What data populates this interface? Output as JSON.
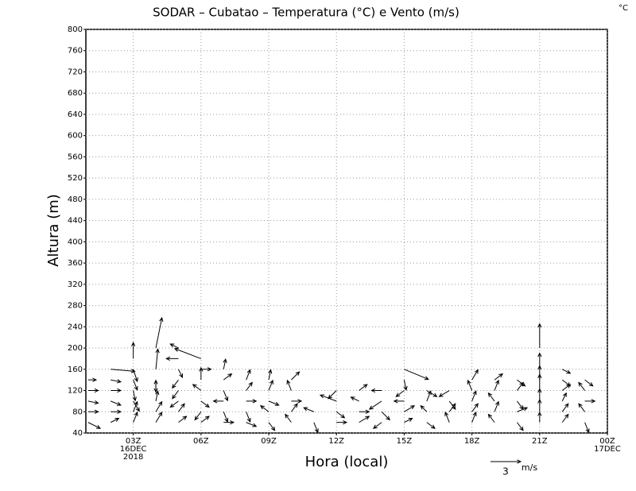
{
  "chart_data": {
    "type": "quiver",
    "title": "SODAR – Cubatao – Temperatura (°C) e Vento (m/s)",
    "corner_label": "°C",
    "xlabel": "Hora (local)",
    "ylabel": "Altura (m)",
    "xlim": [
      0.9,
      24
    ],
    "ylim": [
      40,
      800
    ],
    "xticks": [
      {
        "value": 3,
        "label": "03Z"
      },
      {
        "value": 6,
        "label": "06Z"
      },
      {
        "value": 9,
        "label": "09Z"
      },
      {
        "value": 12,
        "label": "12Z"
      },
      {
        "value": 15,
        "label": "15Z"
      },
      {
        "value": 18,
        "label": "18Z"
      },
      {
        "value": 21,
        "label": "21Z"
      },
      {
        "value": 24,
        "label": "00Z"
      }
    ],
    "date_labels": [
      {
        "value": 3,
        "label": "16DEC"
      },
      {
        "value": 3,
        "label": "2018"
      },
      {
        "value": 24,
        "label": "17DEC"
      }
    ],
    "yticks": [
      40,
      80,
      120,
      160,
      200,
      240,
      280,
      320,
      360,
      400,
      440,
      480,
      520,
      560,
      600,
      640,
      680,
      720,
      760,
      800
    ],
    "grid": true,
    "color": "#000000",
    "key_value": 3,
    "key_unit": "m/s",
    "vectors": [
      {
        "x": 1,
        "y": 60,
        "u": 1.2,
        "v": -0.6
      },
      {
        "x": 1,
        "y": 80,
        "u": 1,
        "v": 0
      },
      {
        "x": 1,
        "y": 100,
        "u": 1,
        "v": -0.2
      },
      {
        "x": 1,
        "y": 120,
        "u": 1,
        "v": 0
      },
      {
        "x": 1,
        "y": 140,
        "u": 0.8,
        "v": 0
      },
      {
        "x": 2,
        "y": 60,
        "u": 0.8,
        "v": 0.4
      },
      {
        "x": 2,
        "y": 80,
        "u": 1,
        "v": 0
      },
      {
        "x": 2,
        "y": 100,
        "u": 1,
        "v": -0.4
      },
      {
        "x": 2,
        "y": 120,
        "u": 1,
        "v": 0
      },
      {
        "x": 2,
        "y": 140,
        "u": 1,
        "v": -0.2
      },
      {
        "x": 2,
        "y": 160,
        "u": 2.4,
        "v": -0.2
      },
      {
        "x": 3,
        "y": 60,
        "u": 0.4,
        "v": 1
      },
      {
        "x": 3,
        "y": 80,
        "u": 0.4,
        "v": 1
      },
      {
        "x": 3,
        "y": 100,
        "u": 0.6,
        "v": -1
      },
      {
        "x": 3,
        "y": 120,
        "u": 0.2,
        "v": -1
      },
      {
        "x": 3,
        "y": 140,
        "u": 0.4,
        "v": -1
      },
      {
        "x": 3,
        "y": 160,
        "u": 0.4,
        "v": -1.2
      },
      {
        "x": 3,
        "y": 180,
        "u": 0,
        "v": 1.6
      },
      {
        "x": 4,
        "y": 60,
        "u": 0.6,
        "v": 1
      },
      {
        "x": 4,
        "y": 80,
        "u": 0.6,
        "v": 1
      },
      {
        "x": 4,
        "y": 100,
        "u": 0.2,
        "v": 1
      },
      {
        "x": 4,
        "y": 120,
        "u": 0,
        "v": 1
      },
      {
        "x": 4,
        "y": 140,
        "u": 0,
        "v": -1.2
      },
      {
        "x": 4,
        "y": 160,
        "u": 0.2,
        "v": 2
      },
      {
        "x": 4,
        "y": 200,
        "u": 0.6,
        "v": 3
      },
      {
        "x": 5,
        "y": 60,
        "u": 0.8,
        "v": 0.6
      },
      {
        "x": 5,
        "y": 80,
        "u": 0.6,
        "v": 0.8
      },
      {
        "x": 5,
        "y": 100,
        "u": -0.8,
        "v": -0.6
      },
      {
        "x": 5,
        "y": 120,
        "u": -0.6,
        "v": -0.8
      },
      {
        "x": 5,
        "y": 140,
        "u": -0.6,
        "v": -0.8
      },
      {
        "x": 5,
        "y": 160,
        "u": 0.4,
        "v": -0.8
      },
      {
        "x": 5,
        "y": 180,
        "u": -1.2,
        "v": 0
      },
      {
        "x": 5,
        "y": 200,
        "u": -0.8,
        "v": 0.4
      },
      {
        "x": 6,
        "y": 60,
        "u": 0.8,
        "v": 0.6
      },
      {
        "x": 6,
        "y": 80,
        "u": -0.6,
        "v": -0.8
      },
      {
        "x": 6,
        "y": 100,
        "u": 0.8,
        "v": -0.6
      },
      {
        "x": 6,
        "y": 120,
        "u": -0.8,
        "v": 0.6
      },
      {
        "x": 6,
        "y": 140,
        "u": 0,
        "v": 1.2
      },
      {
        "x": 6,
        "y": 160,
        "u": 1,
        "v": 0
      },
      {
        "x": 6,
        "y": 180,
        "u": -2.6,
        "v": 1
      },
      {
        "x": 7,
        "y": 60,
        "u": 1,
        "v": 0
      },
      {
        "x": 7,
        "y": 80,
        "u": 0.4,
        "v": -1
      },
      {
        "x": 7,
        "y": 100,
        "u": -1,
        "v": 0
      },
      {
        "x": 7,
        "y": 120,
        "u": 0.4,
        "v": -1
      },
      {
        "x": 7,
        "y": 140,
        "u": 0.8,
        "v": 0.6
      },
      {
        "x": 7,
        "y": 160,
        "u": 0.2,
        "v": 1
      },
      {
        "x": 8,
        "y": 60,
        "u": 1,
        "v": -0.4
      },
      {
        "x": 8,
        "y": 80,
        "u": 0.4,
        "v": -1
      },
      {
        "x": 8,
        "y": 100,
        "u": 1,
        "v": 0
      },
      {
        "x": 8,
        "y": 120,
        "u": 0.6,
        "v": 0.8
      },
      {
        "x": 8,
        "y": 140,
        "u": 0.4,
        "v": 1
      },
      {
        "x": 9,
        "y": 60,
        "u": 0.6,
        "v": -0.8
      },
      {
        "x": 9,
        "y": 80,
        "u": -0.8,
        "v": 0.6
      },
      {
        "x": 9,
        "y": 100,
        "u": 1,
        "v": -0.4
      },
      {
        "x": 9,
        "y": 120,
        "u": 0.4,
        "v": 1
      },
      {
        "x": 9,
        "y": 140,
        "u": 0.2,
        "v": 1
      },
      {
        "x": 10,
        "y": 60,
        "u": -0.6,
        "v": 0.8
      },
      {
        "x": 10,
        "y": 80,
        "u": 0.6,
        "v": 0.8
      },
      {
        "x": 10,
        "y": 100,
        "u": 1,
        "v": 0
      },
      {
        "x": 10,
        "y": 120,
        "u": -0.4,
        "v": 1
      },
      {
        "x": 10,
        "y": 140,
        "u": 0.8,
        "v": 0.8
      },
      {
        "x": 11,
        "y": 60,
        "u": 0.4,
        "v": -1
      },
      {
        "x": 11,
        "y": 80,
        "u": -1,
        "v": 0.4
      },
      {
        "x": 12,
        "y": 60,
        "u": 1,
        "v": 0
      },
      {
        "x": 12,
        "y": 80,
        "u": 0.8,
        "v": -0.6
      },
      {
        "x": 12,
        "y": 100,
        "u": -1.6,
        "v": 0.6
      },
      {
        "x": 12,
        "y": 120,
        "u": -0.8,
        "v": -0.8
      },
      {
        "x": 13,
        "y": 60,
        "u": 1,
        "v": 0.6
      },
      {
        "x": 13,
        "y": 80,
        "u": 1,
        "v": 0
      },
      {
        "x": 13,
        "y": 100,
        "u": -0.8,
        "v": 0.4
      },
      {
        "x": 13,
        "y": 120,
        "u": 0.8,
        "v": 0.6
      },
      {
        "x": 14,
        "y": 60,
        "u": -0.8,
        "v": -0.6
      },
      {
        "x": 14,
        "y": 80,
        "u": 0.8,
        "v": -0.8
      },
      {
        "x": 14,
        "y": 100,
        "u": -1.2,
        "v": -0.8
      },
      {
        "x": 14,
        "y": 120,
        "u": -1,
        "v": 0
      },
      {
        "x": 15,
        "y": 60,
        "u": 0.8,
        "v": 0.4
      },
      {
        "x": 15,
        "y": 80,
        "u": 1,
        "v": 0.6
      },
      {
        "x": 15,
        "y": 100,
        "u": -1,
        "v": 0
      },
      {
        "x": 15,
        "y": 120,
        "u": -0.8,
        "v": -0.6
      },
      {
        "x": 15,
        "y": 140,
        "u": 0.2,
        "v": -1
      },
      {
        "x": 15,
        "y": 160,
        "u": 2.4,
        "v": -1
      },
      {
        "x": 16,
        "y": 60,
        "u": 0.8,
        "v": -0.6
      },
      {
        "x": 16,
        "y": 80,
        "u": -0.6,
        "v": 0.6
      },
      {
        "x": 16,
        "y": 100,
        "u": 0.4,
        "v": 1
      },
      {
        "x": 16,
        "y": 120,
        "u": 1,
        "v": -0.6
      },
      {
        "x": 17,
        "y": 60,
        "u": -0.4,
        "v": 1
      },
      {
        "x": 17,
        "y": 80,
        "u": 0.6,
        "v": 0.8
      },
      {
        "x": 17,
        "y": 100,
        "u": 0.6,
        "v": -0.8
      },
      {
        "x": 17,
        "y": 120,
        "u": -1,
        "v": -0.6
      },
      {
        "x": 18,
        "y": 60,
        "u": 0.4,
        "v": 1
      },
      {
        "x": 18,
        "y": 80,
        "u": 0.6,
        "v": 0.8
      },
      {
        "x": 18,
        "y": 100,
        "u": 0.4,
        "v": 1
      },
      {
        "x": 18,
        "y": 120,
        "u": -0.4,
        "v": 1
      },
      {
        "x": 18,
        "y": 140,
        "u": 0.6,
        "v": 1
      },
      {
        "x": 19,
        "y": 60,
        "u": -0.6,
        "v": 0.8
      },
      {
        "x": 19,
        "y": 80,
        "u": 0.4,
        "v": 1
      },
      {
        "x": 19,
        "y": 100,
        "u": -0.6,
        "v": 0.8
      },
      {
        "x": 19,
        "y": 120,
        "u": 0.4,
        "v": 1
      },
      {
        "x": 19,
        "y": 140,
        "u": 0.8,
        "v": 0.6
      },
      {
        "x": 20,
        "y": 60,
        "u": 0.6,
        "v": -0.8
      },
      {
        "x": 20,
        "y": 80,
        "u": 1,
        "v": 0.4
      },
      {
        "x": 20,
        "y": 100,
        "u": 0.6,
        "v": -0.8
      },
      {
        "x": 20,
        "y": 120,
        "u": 0.6,
        "v": 0.8
      },
      {
        "x": 20,
        "y": 140,
        "u": 0.8,
        "v": -0.6
      },
      {
        "x": 21,
        "y": 60,
        "u": 0,
        "v": 1
      },
      {
        "x": 21,
        "y": 80,
        "u": 0,
        "v": 1.2
      },
      {
        "x": 21,
        "y": 100,
        "u": 0,
        "v": 1.2
      },
      {
        "x": 21,
        "y": 120,
        "u": 0,
        "v": 1.6
      },
      {
        "x": 21,
        "y": 140,
        "u": 0,
        "v": 1.4
      },
      {
        "x": 21,
        "y": 160,
        "u": 0,
        "v": 1.6
      },
      {
        "x": 21,
        "y": 200,
        "u": 0,
        "v": 2.4
      },
      {
        "x": 22,
        "y": 60,
        "u": 0.6,
        "v": 0.8
      },
      {
        "x": 22,
        "y": 80,
        "u": 0.6,
        "v": 0.8
      },
      {
        "x": 22,
        "y": 100,
        "u": 0.4,
        "v": 0.8
      },
      {
        "x": 22,
        "y": 120,
        "u": 0.8,
        "v": 0.6
      },
      {
        "x": 22,
        "y": 140,
        "u": 0.8,
        "v": -0.6
      },
      {
        "x": 22,
        "y": 160,
        "u": 0.8,
        "v": -0.4
      },
      {
        "x": 23,
        "y": 60,
        "u": 0.4,
        "v": -1
      },
      {
        "x": 23,
        "y": 80,
        "u": -0.6,
        "v": 0.8
      },
      {
        "x": 23,
        "y": 100,
        "u": 1,
        "v": 0
      },
      {
        "x": 23,
        "y": 120,
        "u": -0.6,
        "v": 0.8
      },
      {
        "x": 23,
        "y": 140,
        "u": 0.8,
        "v": -0.6
      }
    ]
  }
}
